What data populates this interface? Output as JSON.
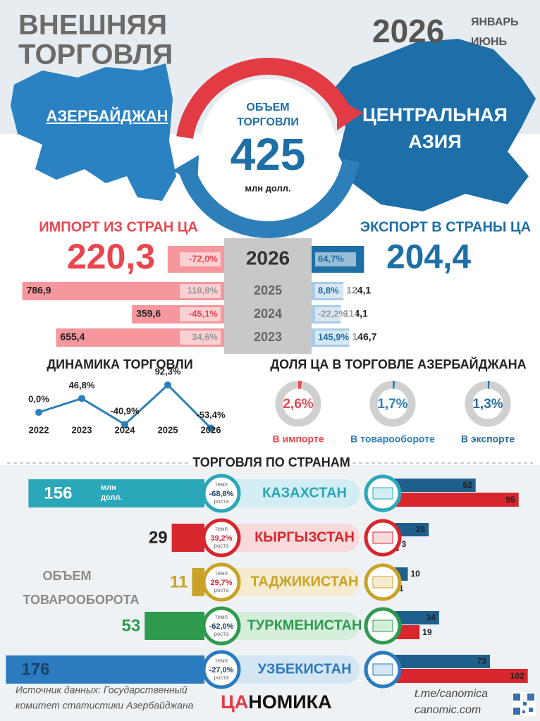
{
  "header": {
    "title": [
      "ВНЕШНЯЯ",
      "ТОРГОВЛЯ"
    ],
    "year": "2026",
    "period": [
      "ЯНВАРЬ",
      "ИЮНЬ"
    ]
  },
  "map": {
    "azerbaijan": "АЗЕРБАЙДЖАН",
    "central_asia": [
      "ЦЕНТРАЛЬНАЯ",
      "АЗИЯ"
    ]
  },
  "total": {
    "label": [
      "ОБЪЕМ",
      "ТОРГОВЛИ"
    ],
    "value": 425,
    "unit": "млн долл."
  },
  "flows": {
    "import_title": "ИМПОРТ ИЗ СТРАН ЦА",
    "export_title": "ЭКСПОРТ В СТРАНЫ ЦА",
    "years": [
      "2026",
      "2025",
      "2024",
      "2023"
    ],
    "import": {
      "color": "#f5979d",
      "values": [
        220.3,
        786.9,
        359.6,
        655.4
      ],
      "value_labels": [
        "220,3",
        "786,9",
        "359,6",
        "655,4"
      ],
      "change": [
        -72.0,
        118.8,
        -45.1,
        34.6
      ],
      "change_labels": [
        "-72,0%",
        "118,8%",
        "-45,1%",
        "34,6%"
      ]
    },
    "export": {
      "color": "#a9cbe6",
      "values": [
        204.4,
        124.1,
        114.1,
        146.7
      ],
      "value_labels": [
        "204,4",
        "124,1",
        "114,1",
        "146,7"
      ],
      "change": [
        64.7,
        8.8,
        -22.2,
        145.9
      ],
      "change_labels": [
        "64,7%",
        "8,8%",
        "-22,2%",
        "145,9%"
      ]
    }
  },
  "dynamics": {
    "type": "line",
    "title": "ДИНАМИКА ТОРГОВЛИ",
    "color": "#2d7fb9",
    "categories": [
      "2022",
      "2023",
      "2024",
      "2025",
      "2026"
    ],
    "values": [
      0.0,
      46.8,
      -40.9,
      92.3,
      -53.4
    ],
    "value_labels": [
      "0,0%",
      "46,8%",
      "-40,9%",
      "92,3%",
      "-53,4%"
    ]
  },
  "share": {
    "type": "donut",
    "title": "ДОЛЯ ЦА В ТОРГОВЛЕ АЗЕРБАЙДЖАНА",
    "items": [
      {
        "label": "В импорте",
        "value": 2.6,
        "value_label": "2,6%",
        "color": "#e8474f"
      },
      {
        "label": "В товарообороте",
        "value": 1.7,
        "value_label": "1,7%",
        "color": "#2d7fb9"
      },
      {
        "label": "В экспорте",
        "value": 1.3,
        "value_label": "1,3%",
        "color": "#2a6f9e"
      }
    ]
  },
  "countries": {
    "title": "ТОРГОВЛЯ ПО СТРАНАМ",
    "side_label": [
      "ОБЪЕМ",
      "ТОВАРООБОРОТА"
    ],
    "unit": [
      "млн",
      "долл."
    ],
    "growth_caption": [
      "темп",
      "роста"
    ],
    "export_color": "#1f5f8b",
    "import_color": "#d7262e",
    "rows": [
      {
        "name": "КАЗАХСТАН",
        "color": "#2aa7b8",
        "light": "#d3eef2",
        "volume": 156,
        "growth": -68.8,
        "growth_label": "-68,8%",
        "export": 62,
        "import": 95
      },
      {
        "name": "КЫРГЫЗСТАН",
        "color": "#d7262e",
        "light": "#f8dadb",
        "volume": 29,
        "growth": 39.2,
        "growth_label": "39,2%",
        "export": 26,
        "import": 3
      },
      {
        "name": "ТАДЖИКИСТАН",
        "color": "#c9a227",
        "light": "#f5ecd0",
        "volume": 11,
        "growth": 29.7,
        "growth_label": "29,7%",
        "export": 10,
        "import": 1
      },
      {
        "name": "ТУРКМЕНИСТАН",
        "color": "#2e9b4e",
        "light": "#d5eedb",
        "volume": 53,
        "growth": -62.0,
        "growth_label": "-62,0%",
        "export": 34,
        "import": 19
      },
      {
        "name": "УЗБЕКИСТАН",
        "color": "#2a7bbf",
        "light": "#d4e5f3",
        "volume": 176,
        "growth": -27.0,
        "growth_label": "-27,0%",
        "export": 73,
        "import": 102
      }
    ]
  },
  "footer": {
    "source": [
      "Источник данных: Государственный",
      "комитет статистики Азербайджана"
    ],
    "logo": [
      "ЦА",
      "НОМИКА"
    ],
    "links": [
      "t.me/canomica",
      "canomic.com"
    ]
  }
}
